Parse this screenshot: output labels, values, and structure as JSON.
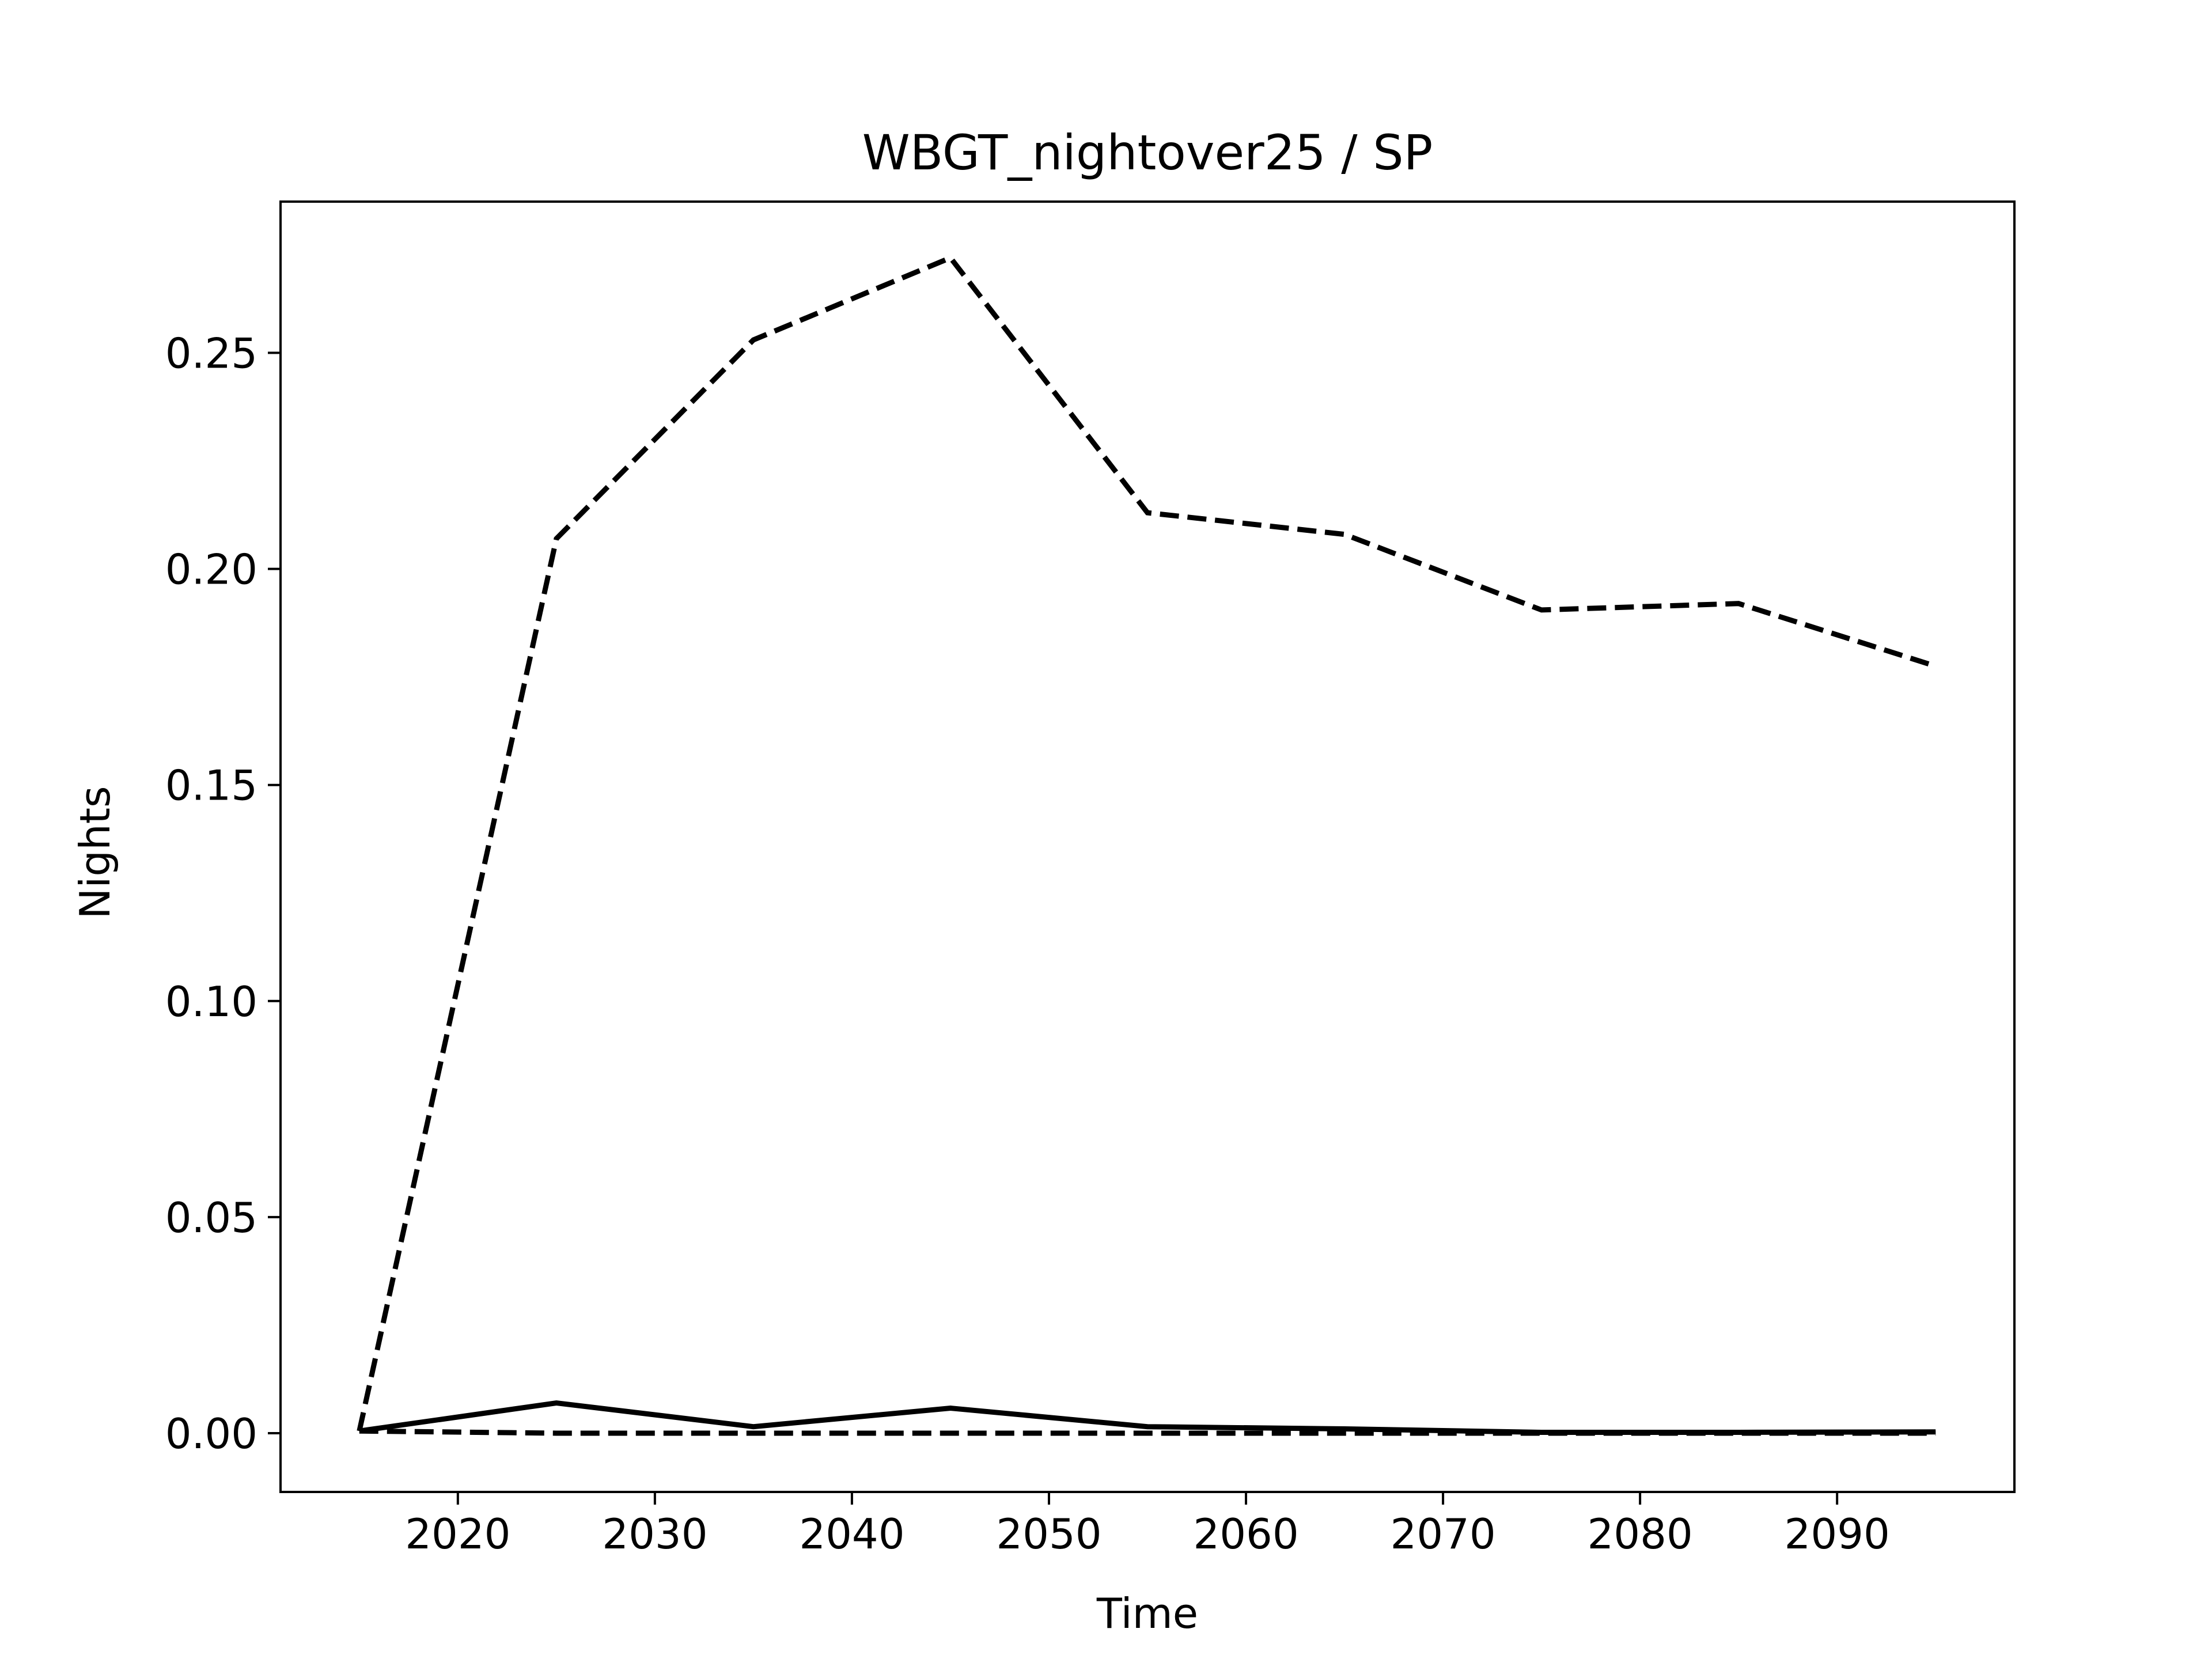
{
  "chart_data": {
    "type": "line",
    "title": "WBGT_nightover25 / SP",
    "xlabel": "Time",
    "ylabel": "Nights",
    "xlim": [
      2011,
      2099
    ],
    "ylim": [
      -0.0136,
      0.285
    ],
    "xticks": [
      2020,
      2030,
      2040,
      2050,
      2060,
      2070,
      2080,
      2090
    ],
    "xtick_labels": [
      "2020",
      "2030",
      "2040",
      "2050",
      "2060",
      "2070",
      "2080",
      "2090"
    ],
    "yticks": [
      0.0,
      0.05,
      0.1,
      0.15,
      0.2,
      0.25
    ],
    "ytick_labels": [
      "0.00",
      "0.05",
      "0.10",
      "0.15",
      "0.20",
      "0.25"
    ],
    "grid": false,
    "legend": "none",
    "x": [
      2015,
      2025,
      2035,
      2045,
      2055,
      2065,
      2075,
      2085,
      2095
    ],
    "series": [
      {
        "style": "dashed",
        "color": "#000000",
        "values": [
          0.0005,
          0.207,
          0.253,
          0.272,
          0.213,
          0.208,
          0.1905,
          0.192,
          0.1775
        ]
      },
      {
        "style": "solid",
        "color": "#000000",
        "values": [
          0.0005,
          0.007,
          0.0015,
          0.0058,
          0.0015,
          0.001,
          0.0002,
          0.0002,
          0.0003
        ]
      },
      {
        "style": "dashed",
        "color": "#000000",
        "values": [
          0.0005,
          0.0,
          0.0,
          0.0,
          0.0,
          0.0,
          0.0,
          0.0,
          0.0
        ]
      }
    ]
  }
}
